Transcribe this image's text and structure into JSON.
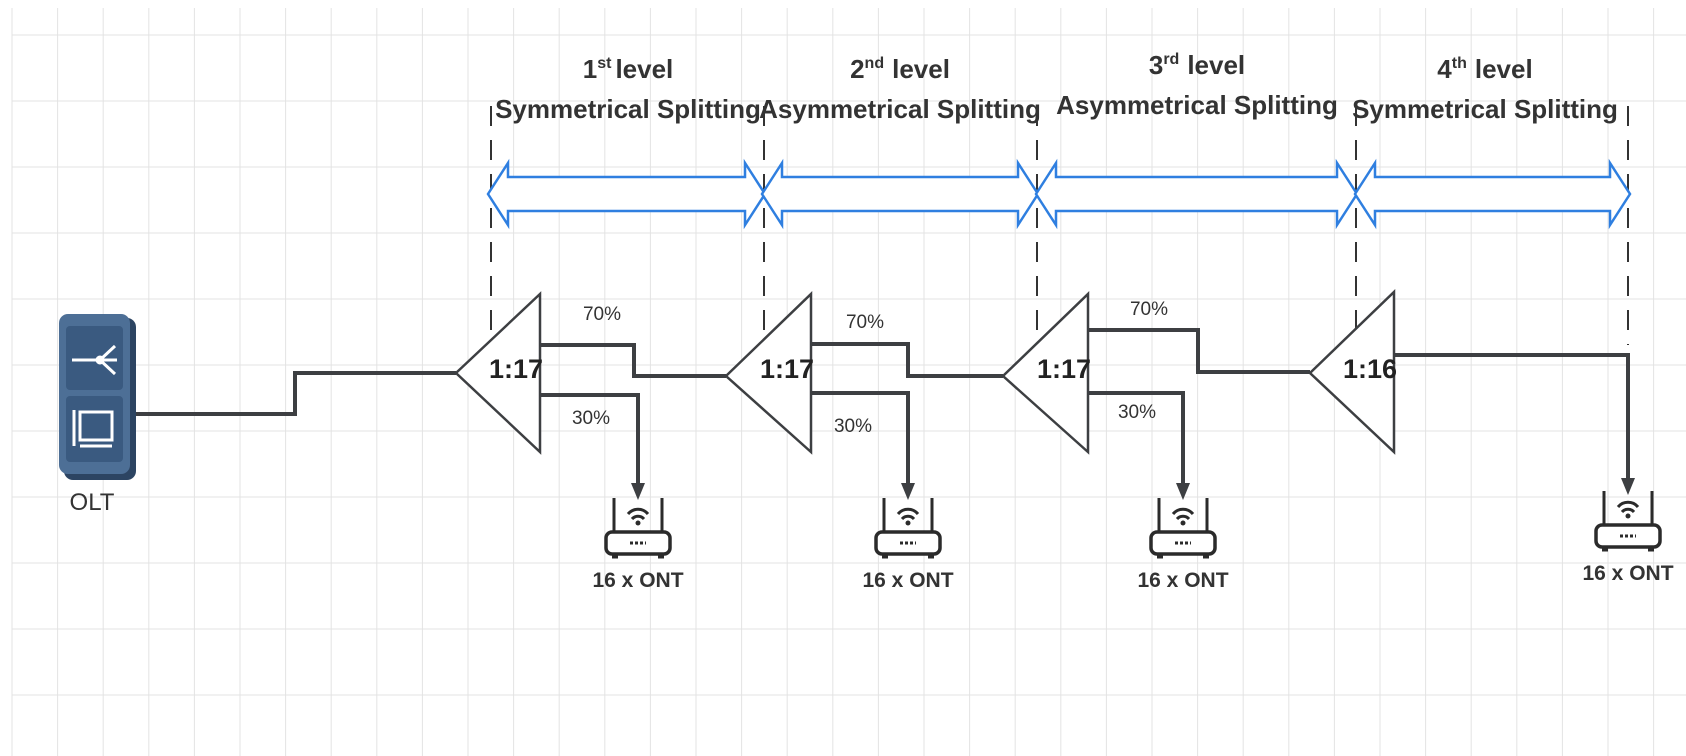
{
  "olt": {
    "label": "OLT"
  },
  "levels": [
    {
      "num": "1",
      "sup": "st",
      "word": "level",
      "type": "Symmetrical Splitting"
    },
    {
      "num": "2",
      "sup": "nd",
      "word": "level",
      "type": "Asymmetrical Splitting"
    },
    {
      "num": "3",
      "sup": "rd",
      "word": "level",
      "type": "Asymmetrical Splitting"
    },
    {
      "num": "4",
      "sup": "th",
      "word": "level",
      "type": "Symmetrical Splitting"
    }
  ],
  "splitters": [
    {
      "ratio": "1:17",
      "upper_pct": "70%",
      "lower_pct": "30%"
    },
    {
      "ratio": "1:17",
      "upper_pct": "70%",
      "lower_pct": "30%"
    },
    {
      "ratio": "1:17",
      "upper_pct": "70%",
      "lower_pct": "30%"
    },
    {
      "ratio": "1:16"
    }
  ],
  "onts": [
    {
      "label": "16 x ONT"
    },
    {
      "label": "16 x ONT"
    },
    {
      "label": "16 x ONT"
    },
    {
      "label": "16 x ONT"
    }
  ],
  "colors": {
    "grid": "#e3e3e3",
    "line": "#3d3f42",
    "arrow": "#2f7fe0",
    "olt": "#3e5f84",
    "dashed": "#333333"
  }
}
